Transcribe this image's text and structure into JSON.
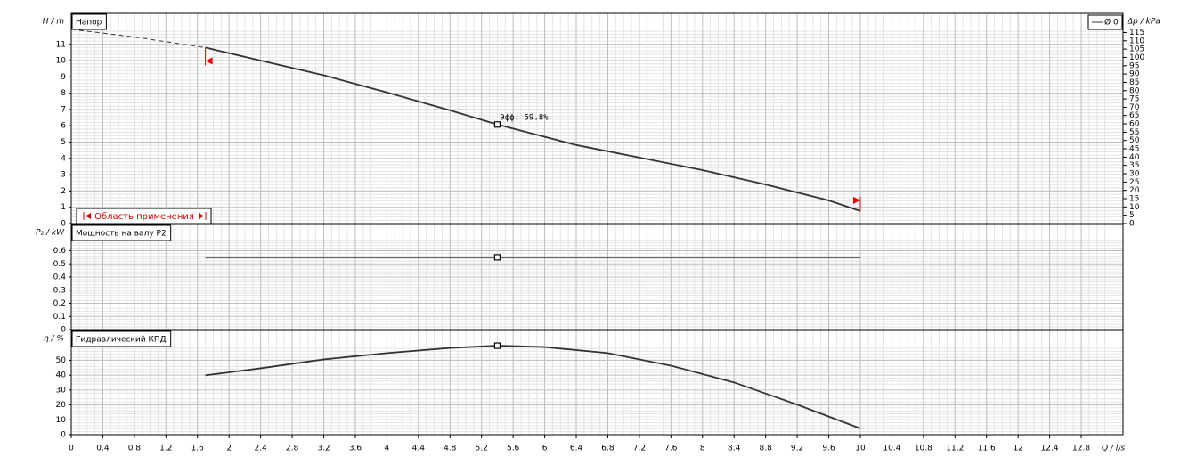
{
  "chart_data": [
    {
      "type": "line",
      "title": "Напор",
      "ylabel": "H / m",
      "y2label": "Δp / kPa",
      "x": [
        0,
        0.8,
        1.7,
        2.4,
        3.2,
        4.0,
        4.8,
        5.4,
        6.4,
        7.2,
        8.0,
        8.8,
        9.6,
        10
      ],
      "series": [
        {
          "name": "Ø 0",
          "color": "#333333",
          "values": [
            11.93,
            11.45,
            10.8,
            10.0,
            9.1,
            8.05,
            6.95,
            6.08,
            4.82,
            4.05,
            3.28,
            2.4,
            1.42,
            0.77
          ]
        }
      ],
      "xlim": [
        0,
        13.33
      ],
      "ylim": [
        0,
        12.9
      ],
      "yticks": [
        0,
        1,
        2,
        3,
        4,
        5,
        6,
        7,
        8,
        9,
        10,
        11
      ],
      "y2lim": [
        0,
        126.5
      ],
      "y2ticks": [
        0,
        5,
        10,
        15,
        20,
        25,
        30,
        35,
        40,
        45,
        50,
        55,
        60,
        65,
        70,
        75,
        80,
        85,
        90,
        95,
        100,
        105,
        110,
        115
      ],
      "application_range": [
        1.7,
        10
      ],
      "application_label": "Область применения",
      "marker_x": 5.4,
      "annotation": "Эфф. 59.8%",
      "legend": "upper right",
      "grid": true
    },
    {
      "type": "line",
      "title": "Мощность на валу P2",
      "ylabel": "P₂ / kW",
      "x": [
        1.7,
        5.4,
        10
      ],
      "series": [
        {
          "color": "#333333",
          "values": [
            0.55,
            0.55,
            0.55
          ]
        }
      ],
      "xlim": [
        0,
        13.33
      ],
      "ylim": [
        0,
        0.8
      ],
      "yticks": [
        0,
        0.1,
        0.2,
        0.3,
        0.4,
        0.5,
        0.6
      ],
      "marker_x": 5.4,
      "grid": true
    },
    {
      "type": "line",
      "title": "Гидравлический КПД",
      "ylabel": "η / %",
      "xlabel": "Q / l/s",
      "x": [
        1.7,
        2.4,
        3.2,
        4.0,
        4.8,
        5.4,
        6.0,
        6.8,
        7.6,
        8.4,
        9.2,
        10
      ],
      "series": [
        {
          "color": "#333333",
          "values": [
            39.9,
            44.6,
            50.6,
            54.8,
            58.3,
            59.8,
            58.9,
            54.8,
            46.4,
            35.1,
            20.2,
            4.2
          ]
        }
      ],
      "xlim": [
        0,
        13.33
      ],
      "ylim": [
        0,
        70
      ],
      "yticks": [
        0,
        10,
        20,
        30,
        40,
        50
      ],
      "xticks": [
        0,
        0.4,
        0.8,
        1.2,
        1.6,
        2,
        2.4,
        2.8,
        3.2,
        3.6,
        4,
        4.4,
        4.8,
        5.2,
        5.6,
        6,
        6.4,
        6.8,
        7.2,
        7.6,
        8,
        8.4,
        8.8,
        9.2,
        9.6,
        10,
        10.4,
        10.8,
        11.2,
        11.6,
        12,
        12.4,
        12.8
      ],
      "marker_x": 5.4,
      "grid": true
    }
  ]
}
